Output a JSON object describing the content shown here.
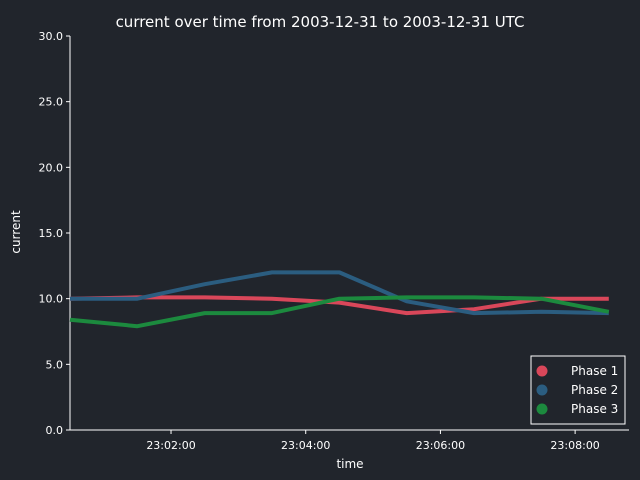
{
  "chart_data": {
    "type": "line",
    "title": "current over time from 2003-12-31 to 2003-12-31 UTC",
    "xlabel": "time",
    "ylabel": "current",
    "x": [
      "23:00:30",
      "23:01:30",
      "23:02:30",
      "23:03:30",
      "23:04:30",
      "23:05:30",
      "23:06:30",
      "23:07:30",
      "23:08:30"
    ],
    "xlim": [
      "23:00:30",
      "23:08:48"
    ],
    "xticks": [
      "23:02:00",
      "23:04:00",
      "23:06:00",
      "23:08:00"
    ],
    "ylim": [
      0,
      30
    ],
    "yticks": [
      "0.0",
      "5.0",
      "10.0",
      "15.0",
      "20.0",
      "25.0",
      "30.0"
    ],
    "grid": false,
    "legend_position": "bottom-right",
    "series": [
      {
        "name": "Phase 1",
        "color": "#d9475a",
        "values": [
          10.0,
          10.1,
          10.1,
          10.0,
          9.7,
          8.9,
          9.2,
          10.0,
          10.0
        ]
      },
      {
        "name": "Phase 2",
        "color": "#2b5d80",
        "values": [
          10.0,
          10.0,
          11.1,
          12.0,
          12.0,
          9.8,
          8.9,
          9.0,
          8.9
        ]
      },
      {
        "name": "Phase 3",
        "color": "#1c8a3e",
        "values": [
          8.4,
          7.9,
          8.9,
          8.9,
          10.0,
          10.1,
          10.1,
          10.0,
          9.0
        ]
      }
    ]
  }
}
